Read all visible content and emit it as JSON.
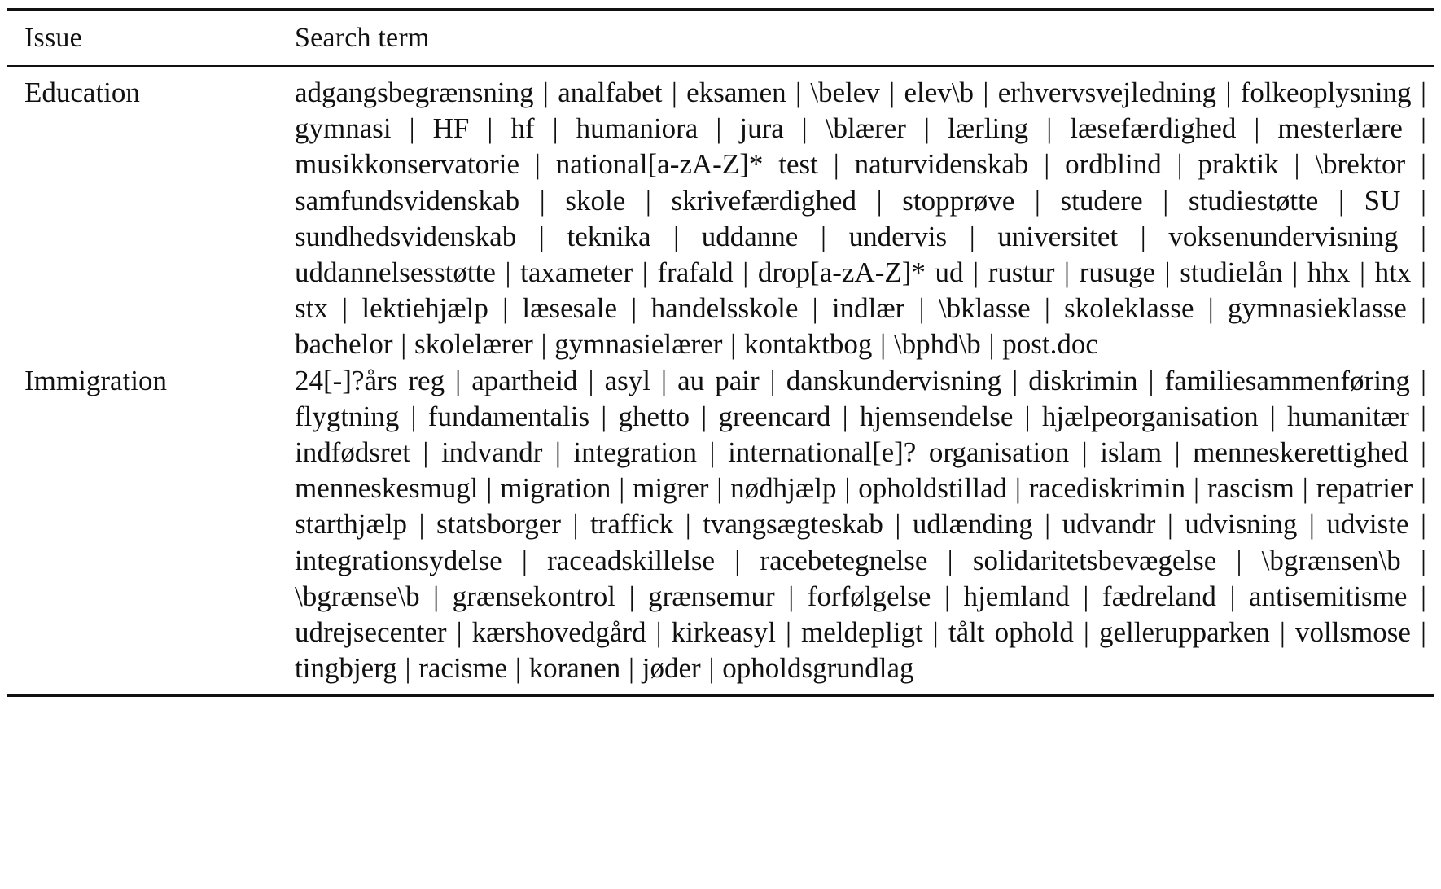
{
  "table": {
    "headers": {
      "issue": "Issue",
      "search_term": "Search term"
    },
    "rows": [
      {
        "issue": "Education",
        "terms": "adgangsbegrænsning | analfabet | eksamen | \\belev | elev\\b | erhvervsvejledning | folkeoplysning | gymnasi | HF | hf | humaniora | jura | \\blærer | lærling | læsefærdighed | mesterlære | musikkonservatorie | national[a-zA-Z]* test | naturvidenskab | ordblind | praktik | \\brektor | samfundsvidenskab | skole | skrivefærdighed | stopprøve | studere | studiestøtte | SU | sundhedsvidenskab | teknika | uddanne | undervis | universitet | voksenundervisning | uddannelsesstøtte | taxameter | frafald | drop[a-zA-Z]* ud | rustur | rusuge | studielån | hhx | htx | stx | lektiehjælp | læsesale | handelsskole | indlær | \\bklasse | skoleklasse | gymnasieklasse | bachelor | skolelærer | gymnasielærer | kontaktbog | \\bphd\\b | post.doc"
      },
      {
        "issue": "Immigration",
        "terms": "24[-]?års reg | apartheid | asyl | au pair | danskundervisning | diskrimin | familiesammenføring | flygtning | fundamentalis | ghetto | greencard | hjemsendelse | hjælpeorganisation | humanitær | indfødsret | indvandr | integration | international[e]? organisation | islam | menneskerettighed | menneskesmugl | migration | migrer | nødhjælp | opholdstillad | racediskrimin | rascism | repatrier | starthjælp | statsborger | traffick | tvangsægteskab | udlænding | udvandr | udvisning | udviste | integrationsydelse | raceadskillelse | racebetegnelse | solidaritetsbevægelse | \\bgrænsen\\b | \\bgrænse\\b | grænsekontrol | grænsemur | forfølgelse | hjemland | fædreland | antisemitisme | udrejsecenter | kærshovedgård | kirkeasyl | meldepligt | tålt ophold | gellerupparken | vollsmose | tingbjerg | racisme | koranen | jøder | opholdsgrundlag"
      }
    ]
  }
}
